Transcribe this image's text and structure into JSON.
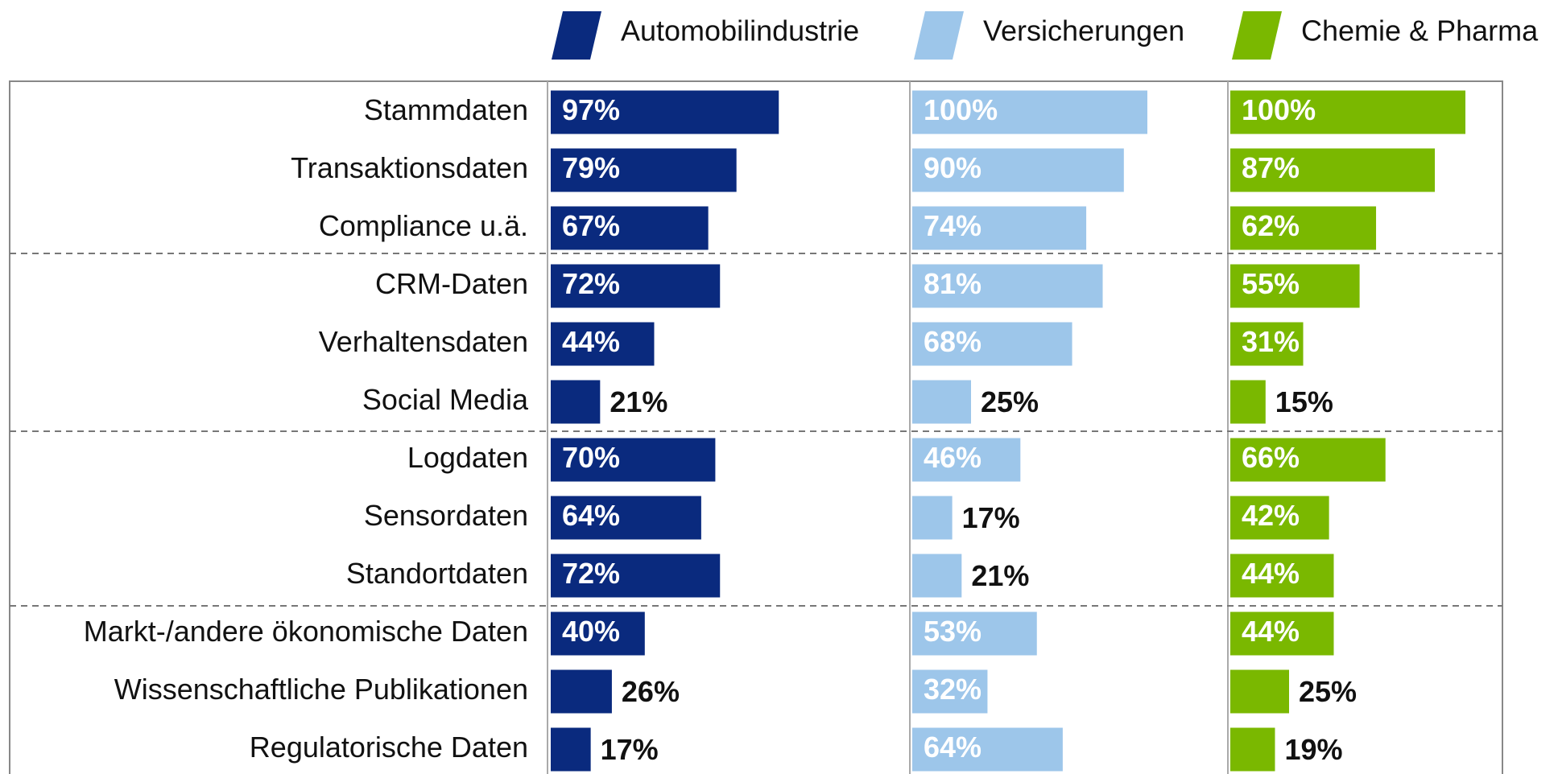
{
  "chart_data": {
    "type": "bar",
    "orientation": "horizontal",
    "categories": [
      "Stammdaten",
      "Transaktionsdaten",
      "Compliance u.ä.",
      "CRM-Daten",
      "Verhaltensdaten",
      "Social Media",
      "Logdaten",
      "Sensordaten",
      "Standortdaten",
      "Markt-/andere ökonomische Daten",
      "Wissenschaftliche Publikationen",
      "Regulatorische Daten"
    ],
    "xlim": [
      0,
      100
    ],
    "series": [
      {
        "name": "Automobilindustrie",
        "color": "#0a2a7e",
        "values": [
          97,
          79,
          67,
          72,
          44,
          21,
          70,
          64,
          72,
          40,
          26,
          17
        ],
        "value_labels": [
          "97%",
          "79%",
          "67%",
          "72%",
          "44%",
          "21%",
          "70%",
          "64%",
          "72%",
          "40%",
          "26%",
          "17%"
        ]
      },
      {
        "name": "Versicherungen",
        "color": "#9dc6ea",
        "values": [
          100,
          90,
          74,
          81,
          68,
          25,
          46,
          17,
          21,
          53,
          32,
          64
        ],
        "value_labels": [
          "100%",
          "90%",
          "74%",
          "81%",
          "68%",
          "25%",
          "46%",
          "17%",
          "21%",
          "53%",
          "32%",
          "64%"
        ]
      },
      {
        "name": "Chemie & Pharma",
        "color": "#7ab800",
        "values": [
          100,
          87,
          62,
          55,
          31,
          15,
          66,
          42,
          44,
          44,
          25,
          19
        ],
        "value_labels": [
          "100%",
          "87%",
          "62%",
          "55%",
          "31%",
          "15%",
          "66%",
          "42%",
          "44%",
          "44%",
          "25%",
          "19%"
        ]
      }
    ]
  }
}
